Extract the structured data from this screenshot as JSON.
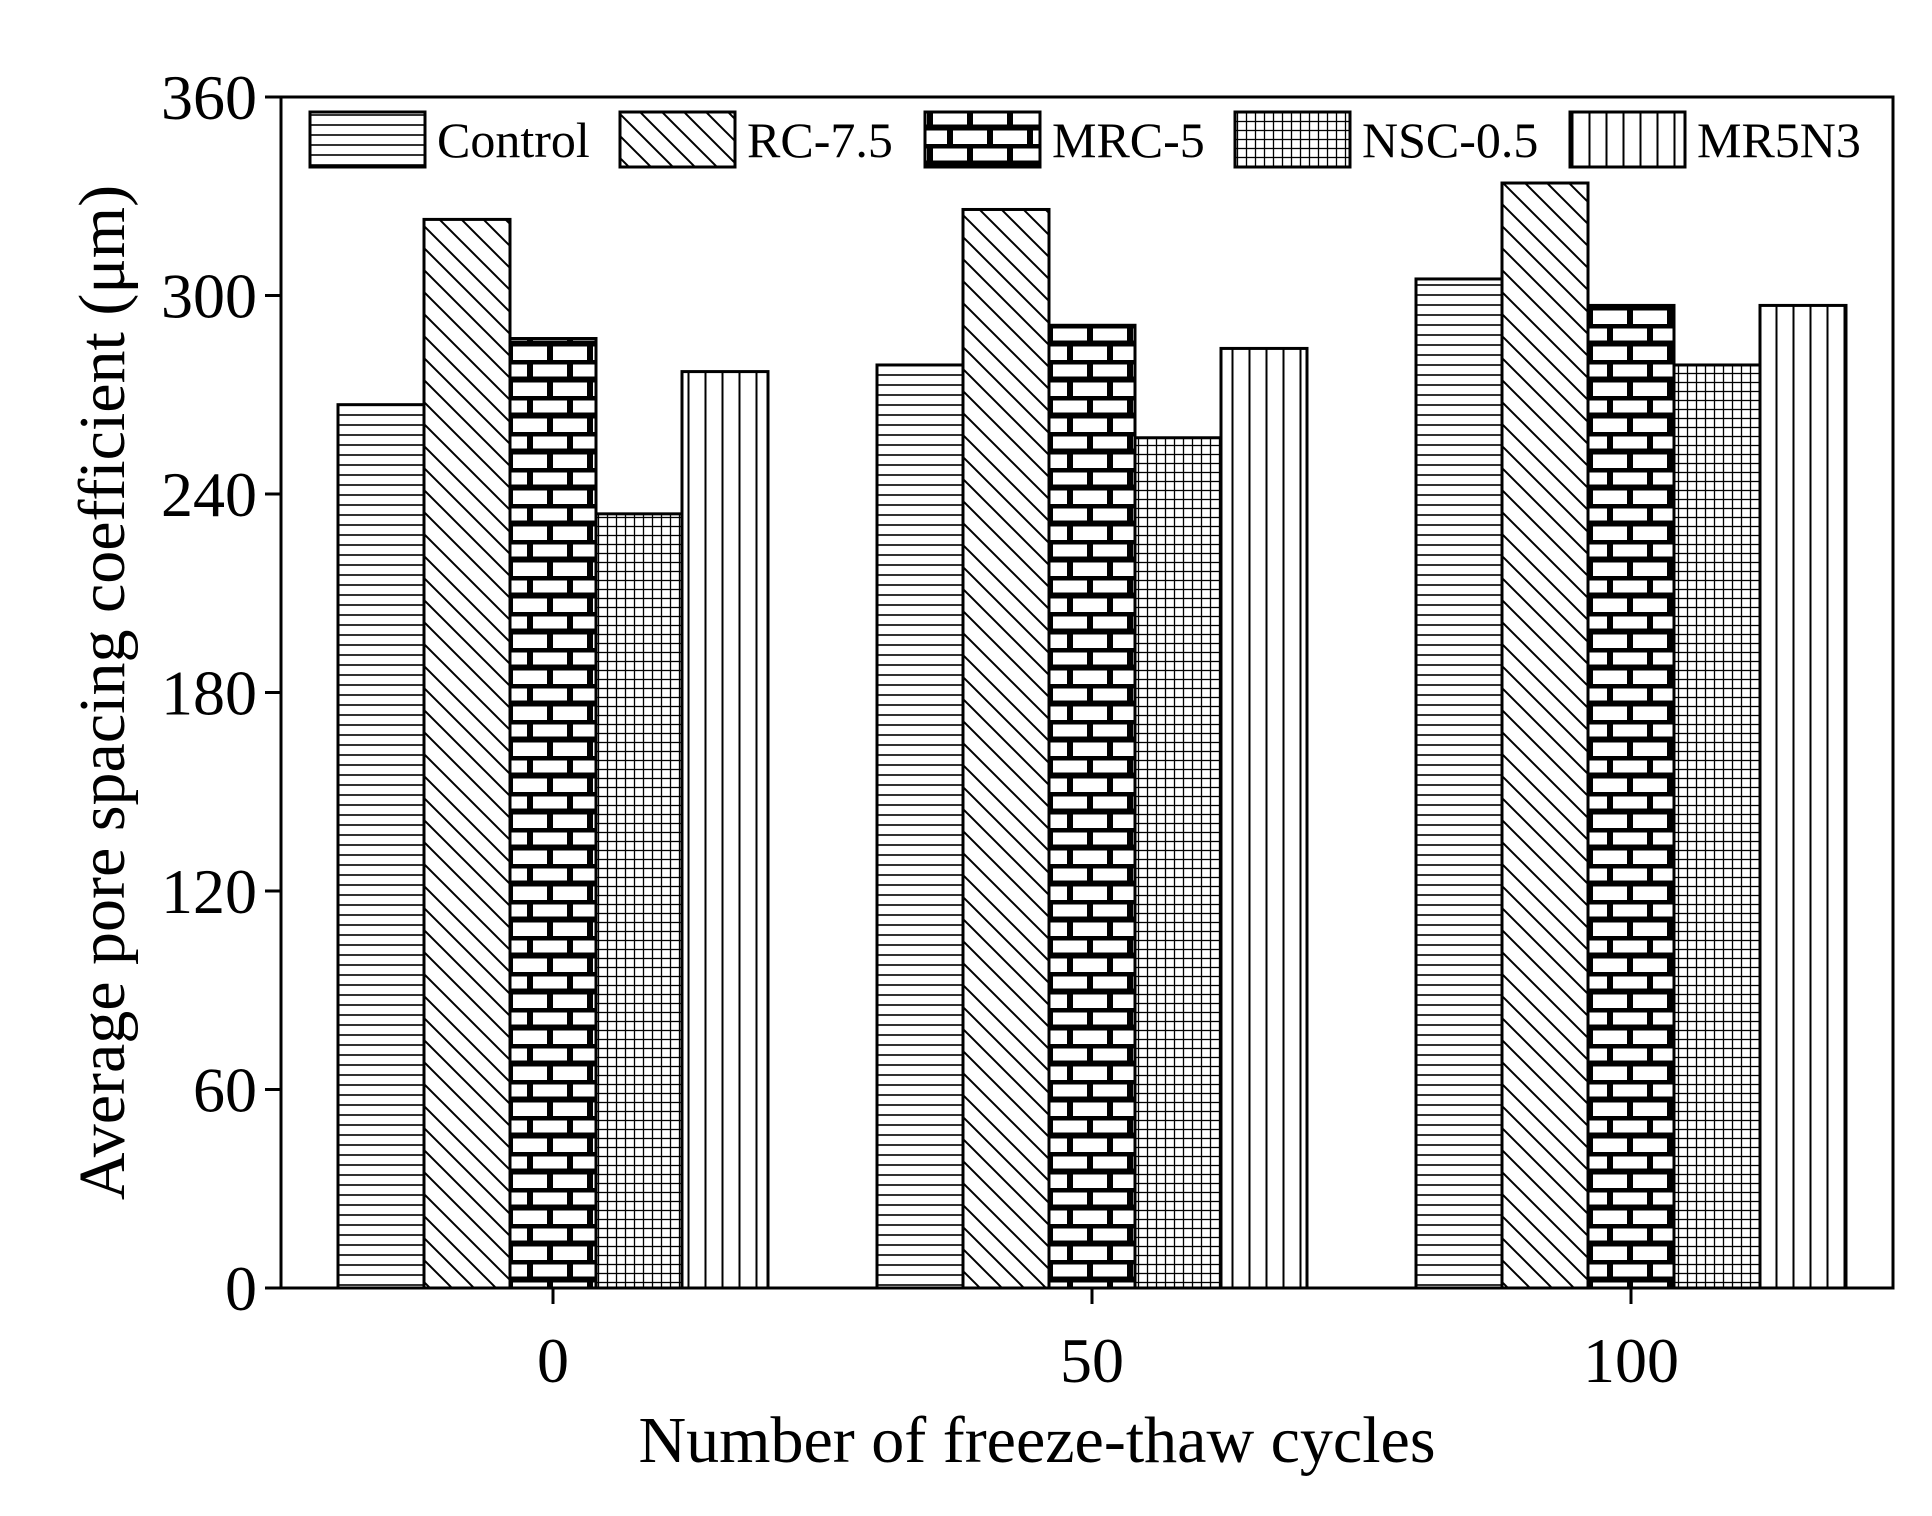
{
  "chart_data": {
    "type": "bar",
    "title": "",
    "xlabel": "Number of freeze-thaw cycles",
    "ylabel": "Average pore spacing coefficient (μm)",
    "categories": [
      "0",
      "50",
      "100"
    ],
    "ylim": [
      0,
      360
    ],
    "yticks": [
      "0",
      "60",
      "120",
      "180",
      "240",
      "300",
      "360"
    ],
    "legend_position": "top, inside plot",
    "grid": false,
    "series": [
      {
        "name": "Control",
        "pattern": "horizontal-lines",
        "values": [
          267,
          279,
          305
        ]
      },
      {
        "name": "RC-7.5",
        "pattern": "diagonal-lines",
        "values": [
          323,
          326,
          334
        ]
      },
      {
        "name": "MRC-5",
        "pattern": "bricks",
        "values": [
          287,
          291,
          297
        ]
      },
      {
        "name": "NSC-0.5",
        "pattern": "fine-grid",
        "values": [
          234,
          257,
          279
        ]
      },
      {
        "name": "MR5N3",
        "pattern": "vertical-lines",
        "values": [
          277,
          284,
          297
        ]
      }
    ],
    "colors": {
      "stroke": "#000000",
      "fill": "#ffffff"
    }
  }
}
